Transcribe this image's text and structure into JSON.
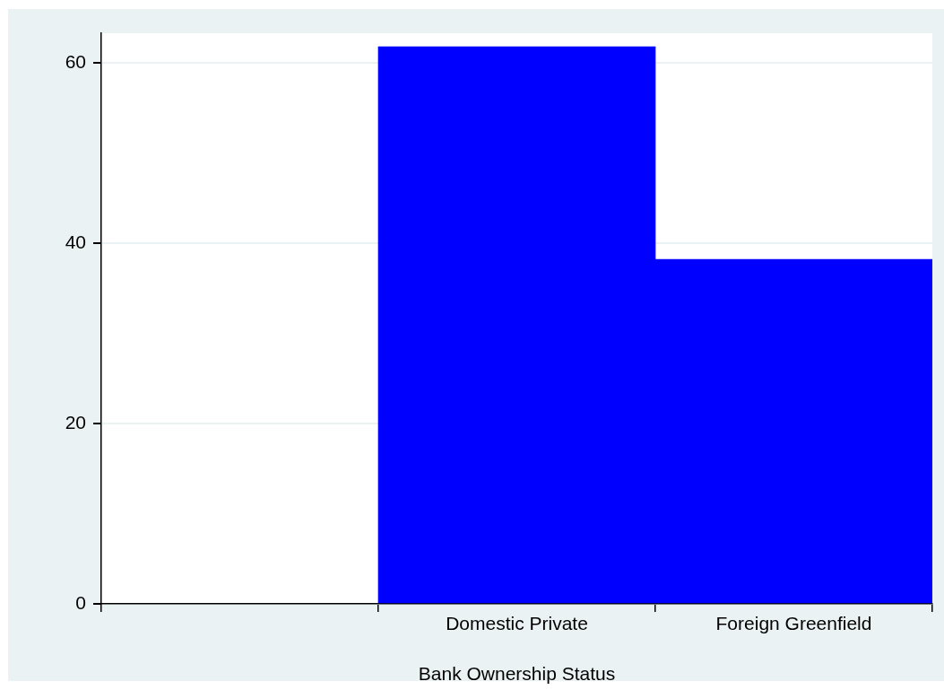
{
  "chart_data": {
    "type": "bar",
    "xlabel": "Bank Ownership Status",
    "categories": [
      null,
      "Domestic Private",
      "Foreign Greenfield"
    ],
    "values": [
      null,
      61.8,
      38.2
    ],
    "color": "#0000ff",
    "ylim": [
      0,
      63.3
    ],
    "yticks": [
      0,
      20,
      40,
      60
    ],
    "grid": "y",
    "legend": false
  }
}
